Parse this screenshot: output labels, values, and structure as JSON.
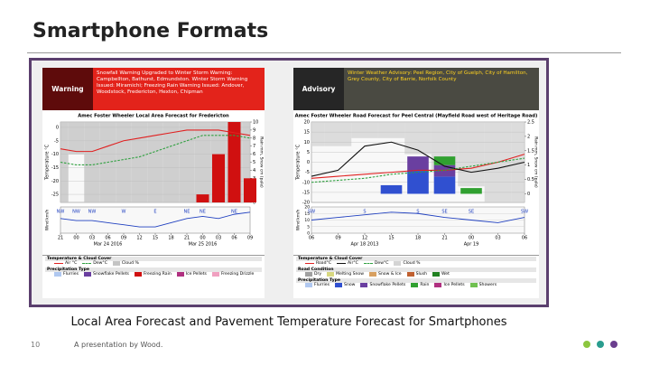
{
  "slide": {
    "title": "Smartphone Formats",
    "caption": "Local Area Forecast and Pavement Temperature Forecast for Smartphones",
    "page_number": "10",
    "footer": "A presentation by Wood."
  },
  "chart_data": [
    {
      "type": "line",
      "banner": {
        "label": "Warning",
        "text": "Snowfall Warning Upgraded to Winter Storm Warning: Campbellton, Bathurst, Edmundston. Winter Storm Warning Issued: Miramichi; Freezing Rain Warning Issued: Andover, Woodstock, Fredericton, Hexton, Chipman",
        "label_color": "#5e0b0b",
        "color": "#e3231b",
        "text_color": "#ffffff"
      },
      "title": "Amec Foster Wheeler Local Area Forecast for Fredericton",
      "ylabel": "Temperature °C",
      "y2label": "Rain mm, Snow cm (pale)",
      "ylim": [
        -28,
        2
      ],
      "yticks": [
        0,
        -5,
        -10,
        -15,
        -20,
        -25
      ],
      "y2lim": [
        0,
        10
      ],
      "y2ticks": [
        10,
        9,
        8,
        7,
        6,
        5,
        4,
        3,
        2,
        1,
        0
      ],
      "categories": [
        "21",
        "00",
        "03",
        "06",
        "09",
        "12",
        "15",
        "18",
        "21",
        "00",
        "03",
        "06",
        "09"
      ],
      "dates": [
        "Mar 24 2016",
        "Mar 25 2016"
      ],
      "series": [
        {
          "name": "Air °C",
          "color": "#e02020",
          "values": [
            -8,
            -9,
            -9,
            -7,
            -5,
            -4,
            -3,
            -2,
            -1,
            -1,
            -1,
            -2,
            -3
          ]
        },
        {
          "name": "Dew°C",
          "color": "#30a040",
          "dash": true,
          "values": [
            -13,
            -14,
            -14,
            -13,
            -12,
            -11,
            -9,
            -7,
            -5,
            -3,
            -3,
            -3,
            -4
          ]
        }
      ],
      "cloud": {
        "name": "Cloud %",
        "color": "#c4c4c4",
        "ylim": [
          0,
          100
        ],
        "values": [
          100,
          40,
          100,
          100,
          100,
          100,
          100,
          100,
          100,
          100,
          100,
          100,
          100
        ]
      },
      "precipitation": [
        {
          "name": "Flurries",
          "color": "#b0c8f0"
        },
        {
          "name": "Snowflake Pellets",
          "color": "#6a3fa0"
        },
        {
          "name": "Freezing Rain",
          "color": "#d01010",
          "values": [
            0,
            0,
            0,
            0,
            0,
            0,
            0,
            0,
            0,
            1,
            6,
            10,
            3
          ]
        },
        {
          "name": "Ice Pellets",
          "color": "#b03080"
        },
        {
          "name": "Freezing Drizzle",
          "color": "#f0a0c0"
        }
      ],
      "wind": {
        "label": "Wind km/h",
        "color": "#2040c0",
        "ylim": [
          0,
          25
        ],
        "directions": [
          "NW",
          "NW",
          "NW",
          null,
          "W",
          null,
          "E",
          null,
          "NE",
          "NE",
          null,
          "NE",
          null
        ],
        "values": [
          14,
          12,
          12,
          10,
          8,
          6,
          6,
          10,
          14,
          16,
          14,
          18,
          20
        ]
      },
      "legend_titles": {
        "temperature": "Temperature & Cloud Cover",
        "precipitation": "Precipitation Type"
      }
    },
    {
      "type": "line",
      "banner": {
        "label": "Advisory",
        "text": "Winter Weather Advisory: Peel Region, City of Guelph, City of Hamilton, Grey County, City of Barrie, Norfolk County",
        "label_color": "#262626",
        "color": "#4a4a42",
        "text_color": "#ffd21f"
      },
      "title": "Amec Foster Wheeler Road Forecast for Peel Central (Mayfield Road west of Heritage Road)",
      "ylabel": "Temperature °C",
      "y2label": "Rain mm, Snow cm (pale)",
      "ylim": [
        -20,
        20
      ],
      "yticks": [
        20,
        15,
        10,
        5,
        0,
        -5,
        -10,
        -15,
        -20
      ],
      "y2lim": [
        -0.3,
        2.5
      ],
      "y2ticks": [
        2.5,
        2,
        1.5,
        1,
        0.5,
        0
      ],
      "categories": [
        "06",
        "09",
        "12",
        "15",
        "18",
        "21",
        "00",
        "03",
        "06"
      ],
      "dates": [
        "Apr 18 2013",
        "Apr 19"
      ],
      "series": [
        {
          "name": "Road°C",
          "color": "#e02020",
          "values": [
            -8,
            -7,
            -6,
            -5,
            -4,
            -4,
            -3,
            0,
            4
          ]
        },
        {
          "name": "Air°C",
          "color": "#111111",
          "values": [
            -7,
            -4,
            8,
            10,
            6,
            -2,
            -5,
            -3,
            0
          ]
        },
        {
          "name": "Dew°C",
          "color": "#30a040",
          "dash": true,
          "values": [
            -10,
            -9,
            -8,
            -6,
            -5,
            -4,
            -2,
            0,
            2
          ]
        }
      ],
      "cloud": {
        "name": "Cloud %",
        "color": "#d4d4d4",
        "ylim": [
          0,
          100
        ],
        "values": [
          30,
          30,
          20,
          20,
          40,
          60,
          80,
          100,
          100
        ]
      },
      "road_conditions": [
        {
          "name": "Dry",
          "color": "#a0a0a0"
        },
        {
          "name": "Melting Snow",
          "color": "#d8d880"
        },
        {
          "name": "Snow & Ice",
          "color": "#d8a060"
        },
        {
          "name": "Slush",
          "color": "#c06030"
        },
        {
          "name": "Wet",
          "color": "#208020"
        }
      ],
      "precipitation": [
        {
          "name": "Flurries",
          "color": "#b0c8f0"
        },
        {
          "name": "Snow",
          "color": "#3050d0",
          "values": [
            0,
            0,
            0,
            0.3,
            0.8,
            0.6,
            0,
            0,
            0
          ]
        },
        {
          "name": "Snowflake Pellets",
          "color": "#6a3fa0",
          "values": [
            0,
            0,
            0,
            0,
            0.5,
            0.4,
            0,
            0,
            0
          ]
        },
        {
          "name": "Rain",
          "color": "#30a030",
          "values": [
            0,
            0,
            0,
            0,
            0,
            0.3,
            0.2,
            0,
            0
          ]
        },
        {
          "name": "Ice Pellets",
          "color": "#b03080"
        },
        {
          "name": "Showers",
          "color": "#70c050"
        }
      ],
      "wind": {
        "label": "Wind km/h",
        "color": "#2040c0",
        "ylim": [
          0,
          20
        ],
        "yticks": [
          20,
          15,
          10,
          5,
          0
        ],
        "directions": [
          "SW",
          null,
          "S",
          null,
          "S",
          "SE",
          "SE",
          null,
          "SW"
        ],
        "values": [
          10,
          12,
          14,
          16,
          15,
          12,
          10,
          8,
          12
        ]
      },
      "legend_titles": {
        "temperature": "Temperature & Cloud Cover",
        "road": "Road Condition",
        "precipitation": "Precipitation Type"
      }
    }
  ]
}
